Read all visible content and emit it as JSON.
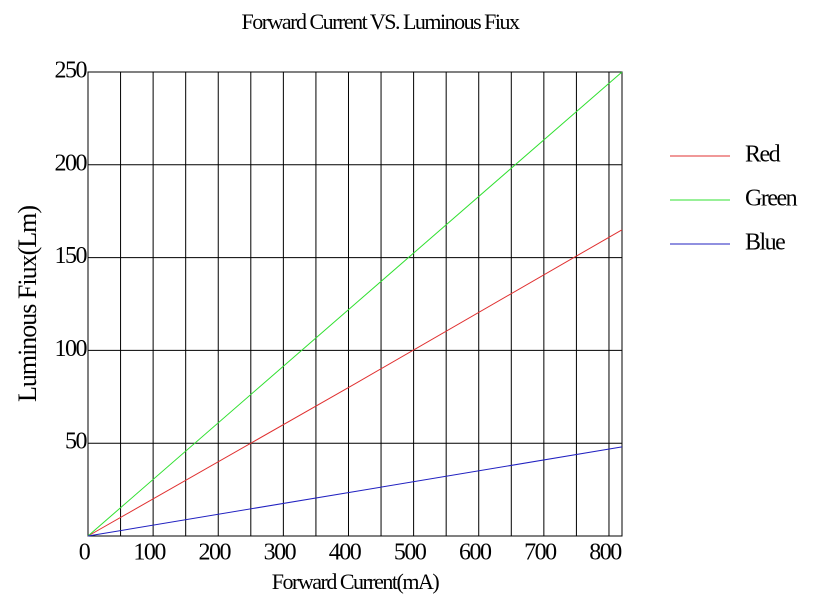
{
  "chart_data": {
    "type": "line",
    "title": "Forward Current VS. Luminous Fiux",
    "x_label": "Forward Current(mA)",
    "y_label": "Luminous Fiux(Lm)",
    "x": [
      0,
      410,
      820
    ],
    "series": [
      {
        "name": "Red",
        "color": "#e03030",
        "values": [
          0,
          82,
          165
        ]
      },
      {
        "name": "Green",
        "color": "#30e030",
        "values": [
          0,
          125,
          250
        ]
      },
      {
        "name": "Blue",
        "color": "#2020c0",
        "values": [
          0,
          24,
          48
        ]
      }
    ],
    "xlim": [
      0,
      820
    ],
    "xticks": [
      0,
      100,
      200,
      300,
      400,
      500,
      600,
      700,
      800
    ],
    "xminorticks": [
      50,
      150,
      250,
      350,
      450,
      550,
      650,
      750
    ],
    "ylim": [
      0,
      250
    ],
    "yticks": [
      50,
      100,
      150,
      200,
      250
    ],
    "grid": true,
    "legend": "right"
  }
}
